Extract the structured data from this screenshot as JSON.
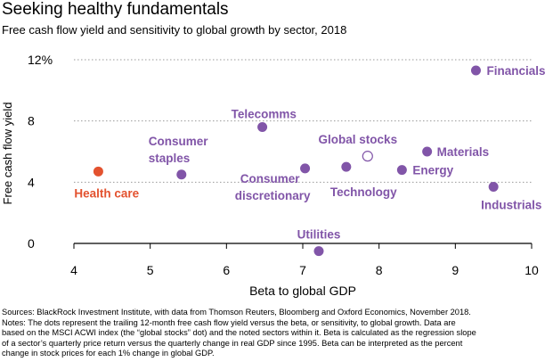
{
  "header": {
    "title": "Seeking healthy fundamentals",
    "subtitle": "Free cash flow yield and sensitivity to global growth by sector, 2018"
  },
  "chart_data": {
    "type": "scatter",
    "title": "Seeking healthy fundamentals",
    "subtitle": "Free cash flow yield and sensitivity to global growth by sector, 2018",
    "xlabel": "Beta to global GDP",
    "ylabel": "Free cash flow yield",
    "xlim": [
      4,
      10
    ],
    "ylim": [
      0,
      12
    ],
    "xticks": [
      "4",
      "5",
      "6",
      "7",
      "8",
      "9",
      "10"
    ],
    "yticks": [
      "0",
      "4",
      "8",
      "12%"
    ],
    "grid": "horizontal dotted",
    "colors": {
      "sector": "#8155a8",
      "highlight": "#e3522f",
      "global": "#8155a8",
      "grid": "#9a9a9a",
      "axis": "#000000"
    },
    "points": [
      {
        "label": "Financials",
        "x": 9.27,
        "y": 11.3,
        "kind": "sector"
      },
      {
        "label": "Telecomms",
        "x": 6.47,
        "y": 7.6,
        "kind": "sector"
      },
      {
        "label": "Consumer staples",
        "x": 5.41,
        "y": 4.5,
        "kind": "sector"
      },
      {
        "label": "Health care",
        "x": 4.32,
        "y": 4.7,
        "kind": "highlight"
      },
      {
        "label": "Consumer discretionary",
        "x": 7.03,
        "y": 4.9,
        "kind": "sector"
      },
      {
        "label": "Technology",
        "x": 7.57,
        "y": 5.0,
        "kind": "sector"
      },
      {
        "label": "Global stocks",
        "x": 7.85,
        "y": 5.7,
        "kind": "global"
      },
      {
        "label": "Materials",
        "x": 8.63,
        "y": 6.0,
        "kind": "sector"
      },
      {
        "label": "Energy",
        "x": 8.3,
        "y": 4.8,
        "kind": "sector"
      },
      {
        "label": "Industrials",
        "x": 9.5,
        "y": 3.7,
        "kind": "sector"
      },
      {
        "label": "Utilities",
        "x": 7.21,
        "y": -0.5,
        "kind": "sector"
      }
    ]
  },
  "notes": [
    "Sources: BlackRock Investment Institute, with data from Thomson Reuters, Bloomberg and Oxford Economics, November 2018.",
    "Notes: The dots represent the trailing 12-month free cash flow yield versus the beta, or sensitivity, to global growth. Data are",
    "based on the MSCI ACWI index (the “global stocks” dot) and the noted sectors within it. Beta is calculated as the regression slope",
    "of a sector’s quarterly price return versus the quarterly change in real GDP since 1995. Beta can be interpreted as the percent",
    "change in stock prices for each 1% change in global GDP."
  ]
}
